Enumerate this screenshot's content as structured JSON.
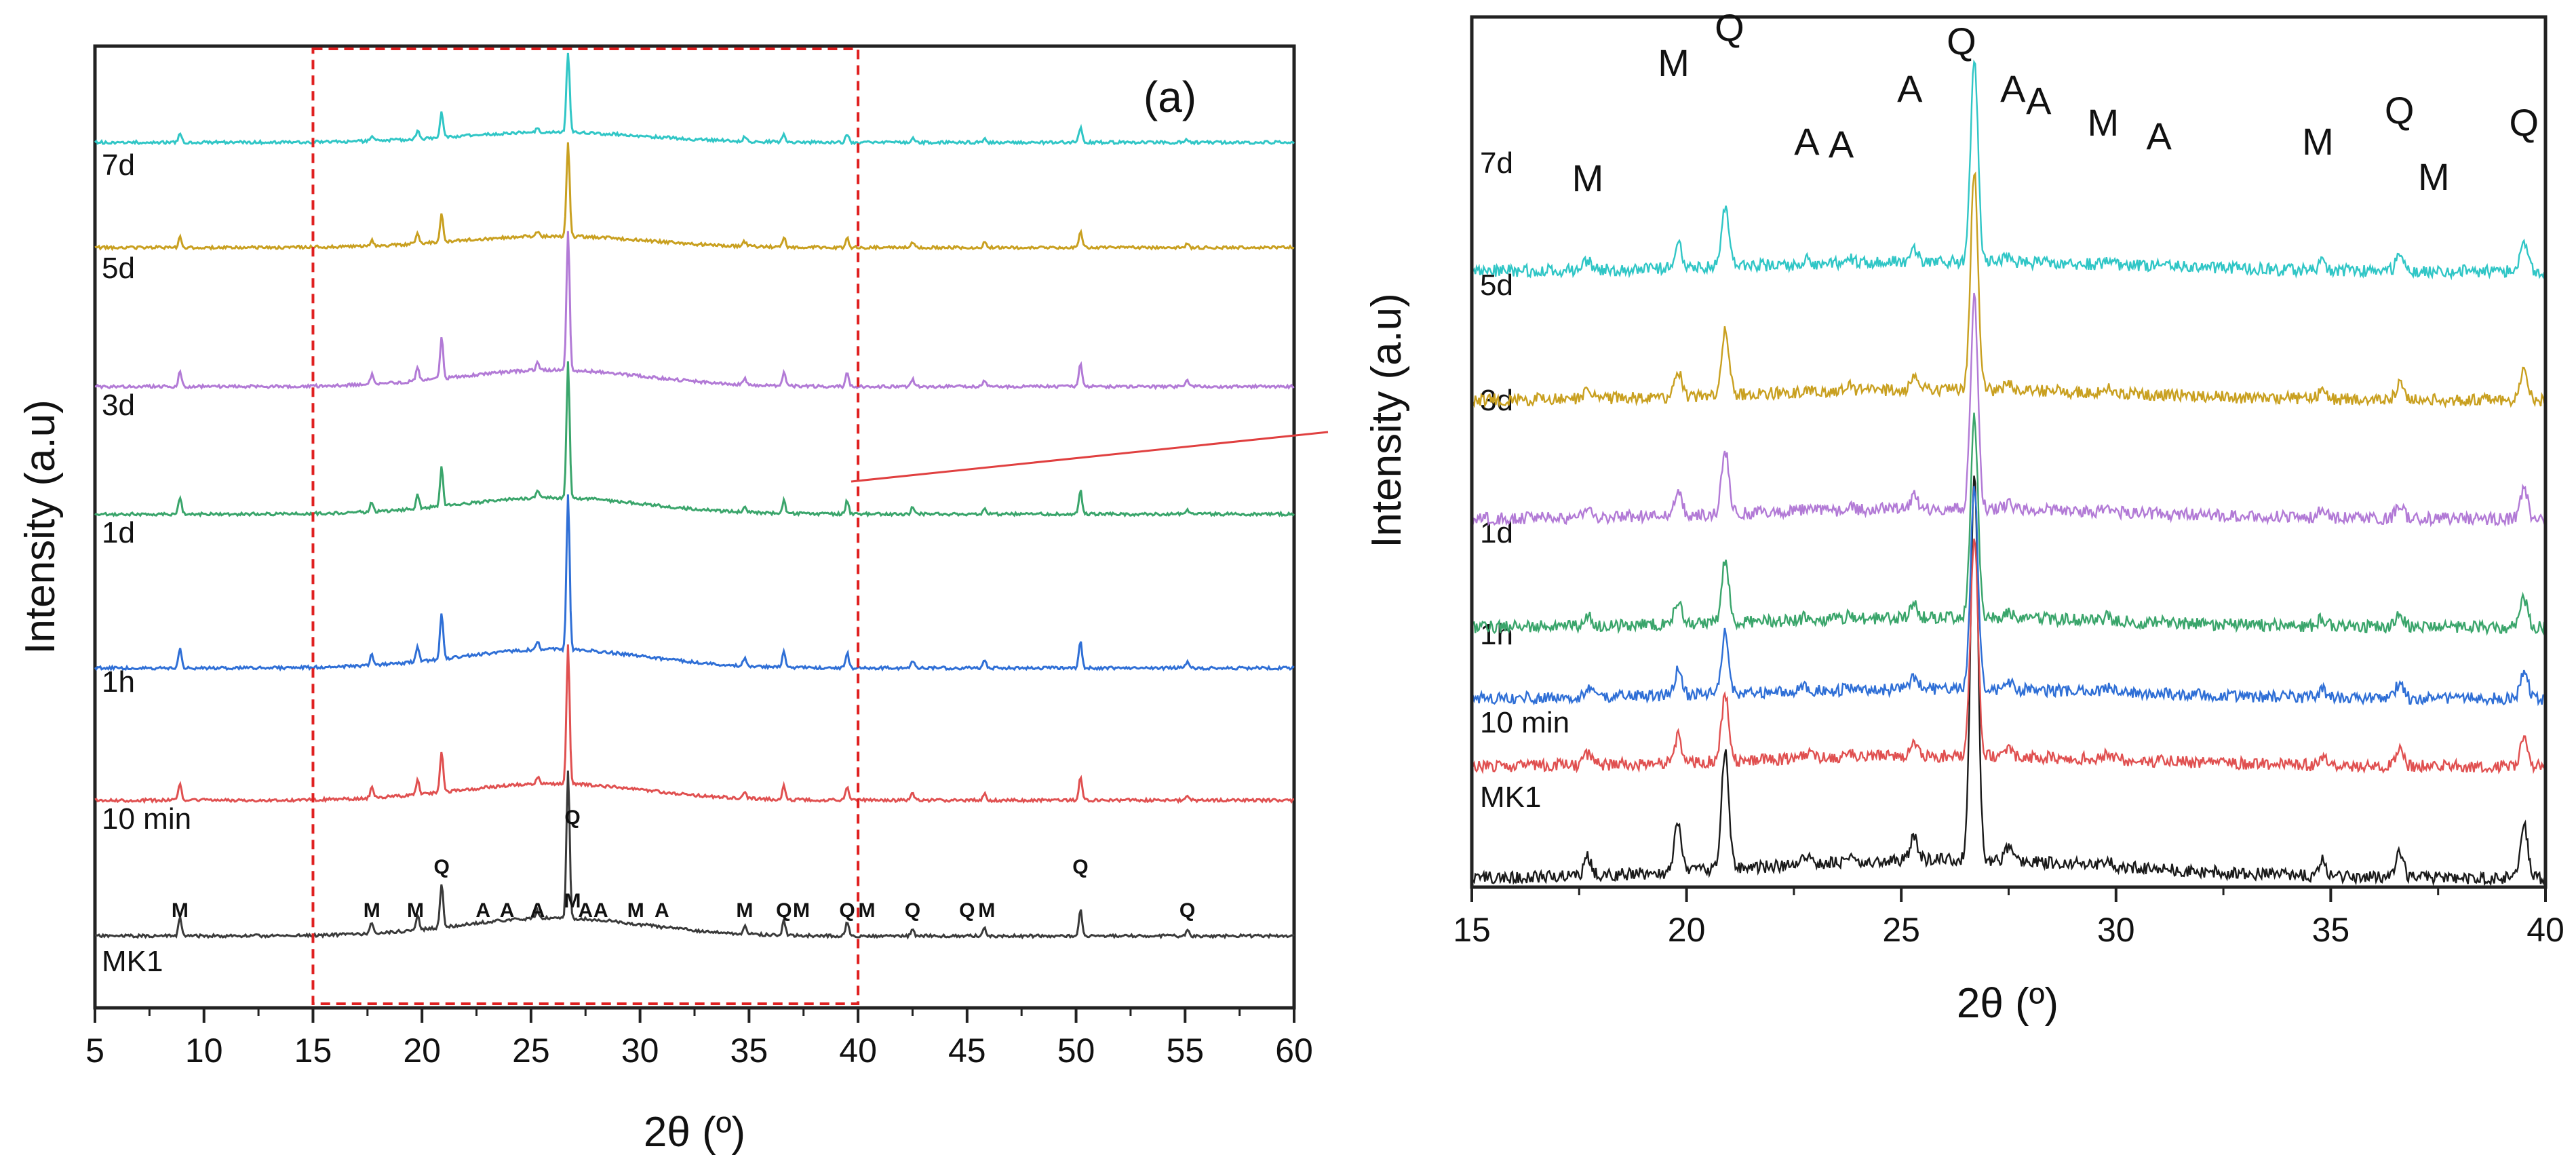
{
  "chart_data": [
    {
      "type": "line",
      "panel_label": "(a)",
      "xlabel": "2θ (º)",
      "ylabel": "Intensity (a.u)",
      "xlim": [
        5,
        60
      ],
      "xticks": [
        5,
        10,
        15,
        20,
        25,
        30,
        35,
        40,
        45,
        50,
        55,
        60
      ],
      "grid": false,
      "offset_stacked": true,
      "zoom_box": [
        15,
        40
      ],
      "series": [
        {
          "name": "MK1",
          "color": "#3a3a3a"
        },
        {
          "name": "10 min",
          "color": "#e05050"
        },
        {
          "name": "1h",
          "color": "#2f6fd6"
        },
        {
          "name": "1d",
          "color": "#3aa56b"
        },
        {
          "name": "3d",
          "color": "#b27ad6"
        },
        {
          "name": "5d",
          "color": "#c9a020"
        },
        {
          "name": "7d",
          "color": "#30c6c6"
        }
      ],
      "peaks": [
        {
          "x": 8.9,
          "h": 0.12
        },
        {
          "x": 17.7,
          "h": 0.07
        },
        {
          "x": 19.8,
          "h": 0.1
        },
        {
          "x": 20.9,
          "h": 0.3
        },
        {
          "x": 25.3,
          "h": 0.05
        },
        {
          "x": 26.7,
          "h": 1.0
        },
        {
          "x": 34.8,
          "h": 0.05
        },
        {
          "x": 36.6,
          "h": 0.1
        },
        {
          "x": 39.5,
          "h": 0.1
        },
        {
          "x": 42.5,
          "h": 0.05
        },
        {
          "x": 45.8,
          "h": 0.05
        },
        {
          "x": 50.2,
          "h": 0.18
        },
        {
          "x": 55.1,
          "h": 0.04
        }
      ],
      "phase_labels": [
        {
          "x": 8.9,
          "text": "M"
        },
        {
          "x": 17.7,
          "text": "M"
        },
        {
          "x": 19.7,
          "text": "M"
        },
        {
          "x": 20.9,
          "text": "Q"
        },
        {
          "x": 22.8,
          "text": "A"
        },
        {
          "x": 23.9,
          "text": "A"
        },
        {
          "x": 25.3,
          "text": "A"
        },
        {
          "x": 26.9,
          "text": "Q"
        },
        {
          "x": 26.9,
          "text": "M"
        },
        {
          "x": 27.5,
          "text": "A"
        },
        {
          "x": 28.2,
          "text": "A"
        },
        {
          "x": 29.8,
          "text": "M"
        },
        {
          "x": 31.0,
          "text": "A"
        },
        {
          "x": 34.8,
          "text": "M"
        },
        {
          "x": 36.6,
          "text": "Q"
        },
        {
          "x": 37.4,
          "text": "M"
        },
        {
          "x": 39.5,
          "text": "Q"
        },
        {
          "x": 40.4,
          "text": "M"
        },
        {
          "x": 42.5,
          "text": "Q"
        },
        {
          "x": 45.0,
          "text": "Q"
        },
        {
          "x": 45.9,
          "text": "M"
        },
        {
          "x": 50.2,
          "text": "Q"
        },
        {
          "x": 55.1,
          "text": "Q"
        }
      ]
    },
    {
      "type": "line",
      "xlabel": "2θ (º)",
      "ylabel": "Intensity (a.u)",
      "xlim": [
        15,
        40
      ],
      "xticks": [
        15,
        20,
        25,
        30,
        35,
        40
      ],
      "grid": false,
      "offset_stacked": true,
      "series": [
        {
          "name": "MK1",
          "color": "#1a1a1a"
        },
        {
          "name": "10 min",
          "color": "#e05050"
        },
        {
          "name": "1h",
          "color": "#2f6fd6"
        },
        {
          "name": "1d",
          "color": "#3aa56b"
        },
        {
          "name": "3d",
          "color": "#b27ad6"
        },
        {
          "name": "5d",
          "color": "#c9a020"
        },
        {
          "name": "7d",
          "color": "#30c6c6"
        }
      ],
      "peaks": [
        {
          "x": 17.7,
          "h": 0.12
        },
        {
          "x": 19.8,
          "h": 0.3
        },
        {
          "x": 20.9,
          "h": 0.75
        },
        {
          "x": 22.8,
          "h": 0.05
        },
        {
          "x": 23.8,
          "h": 0.05
        },
        {
          "x": 25.3,
          "h": 0.15
        },
        {
          "x": 26.7,
          "h": 2.5
        },
        {
          "x": 27.5,
          "h": 0.08
        },
        {
          "x": 29.8,
          "h": 0.05
        },
        {
          "x": 34.8,
          "h": 0.1
        },
        {
          "x": 36.6,
          "h": 0.18
        },
        {
          "x": 39.5,
          "h": 0.35
        }
      ],
      "phase_labels": [
        {
          "x": 17.7,
          "text": "M"
        },
        {
          "x": 19.7,
          "text": "M"
        },
        {
          "x": 21.0,
          "text": "Q"
        },
        {
          "x": 22.8,
          "text": "A"
        },
        {
          "x": 23.6,
          "text": "A"
        },
        {
          "x": 25.2,
          "text": "A"
        },
        {
          "x": 26.4,
          "text": "Q"
        },
        {
          "x": 27.6,
          "text": "A"
        },
        {
          "x": 28.2,
          "text": "A"
        },
        {
          "x": 29.7,
          "text": "M"
        },
        {
          "x": 31.0,
          "text": "A"
        },
        {
          "x": 34.7,
          "text": "M"
        },
        {
          "x": 36.6,
          "text": "Q"
        },
        {
          "x": 37.4,
          "text": "M"
        },
        {
          "x": 39.5,
          "text": "Q"
        }
      ]
    }
  ]
}
